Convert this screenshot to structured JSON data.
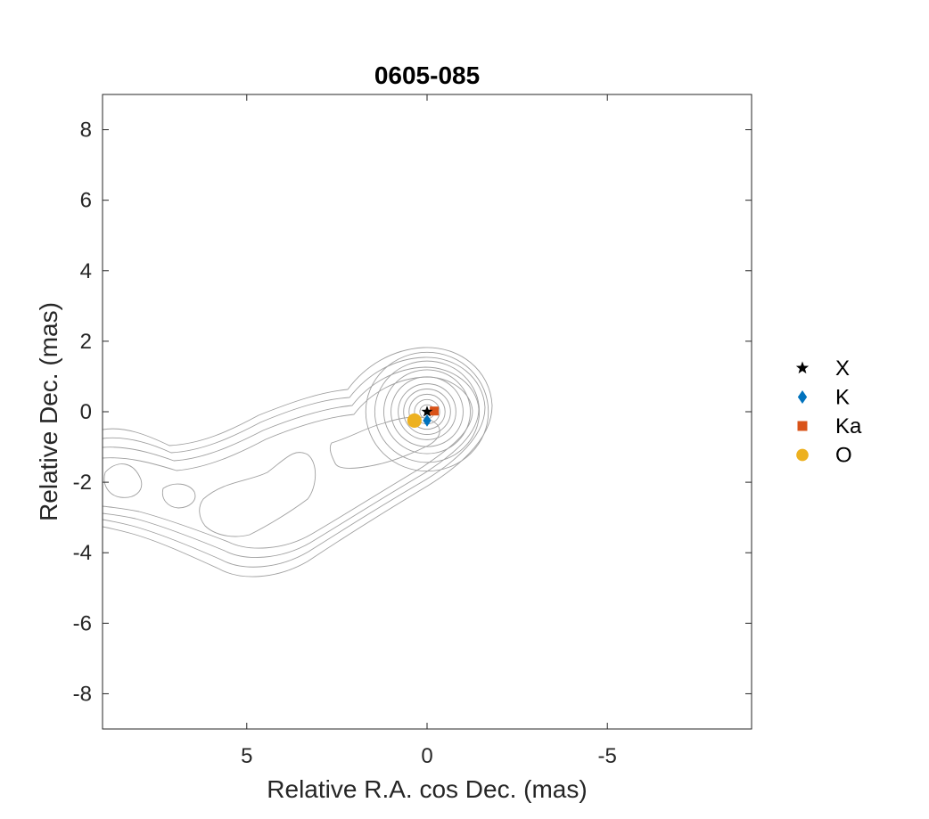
{
  "chart_data": {
    "type": "scatter",
    "title": "0605-085",
    "xlabel": "Relative R.A. cos Dec. (mas)",
    "ylabel": "Relative Dec. (mas)",
    "xlim": [
      9,
      -9
    ],
    "ylim": [
      -9,
      9
    ],
    "x_reversed": true,
    "xticks": [
      5,
      0,
      -5
    ],
    "xtick_labels": [
      "5",
      "0",
      "-5"
    ],
    "yticks": [
      8,
      6,
      4,
      2,
      0,
      -2,
      -4,
      -6,
      -8
    ],
    "ytick_labels": [
      "8",
      "6",
      "4",
      "2",
      "0",
      "-2",
      "-4",
      "-6",
      "-8"
    ],
    "grid": false,
    "legend_position": "outside-right",
    "series": [
      {
        "name": "X",
        "marker": "star",
        "color": "#000000",
        "x": [
          0.0
        ],
        "y": [
          0.0
        ]
      },
      {
        "name": "K",
        "marker": "diamond",
        "color": "#0072BD",
        "x": [
          0.0
        ],
        "y": [
          -0.25
        ]
      },
      {
        "name": "Ka",
        "marker": "square",
        "color": "#D95319",
        "x": [
          -0.2
        ],
        "y": [
          0.02
        ]
      },
      {
        "name": "O",
        "marker": "circle",
        "color": "#EDB120",
        "x": [
          0.35
        ],
        "y": [
          -0.25
        ]
      }
    ],
    "contours": {
      "color": "#a0a0a0",
      "core_center": [
        0.0,
        0.0
      ],
      "core_radii": [
        0.2,
        0.35,
        0.5,
        0.65,
        0.8,
        1.0,
        1.2,
        1.45,
        1.7
      ]
    }
  }
}
